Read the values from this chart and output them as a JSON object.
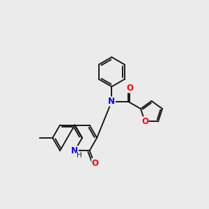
{
  "background_color": "#ebebeb",
  "bond_color": "#1a1a1a",
  "N_color": "#0000ff",
  "O_color": "#ff0000",
  "line_width": 1.4,
  "figsize": [
    3.0,
    3.0
  ],
  "dpi": 100,
  "xlim": [
    0,
    10
  ],
  "ylim": [
    0,
    10
  ]
}
